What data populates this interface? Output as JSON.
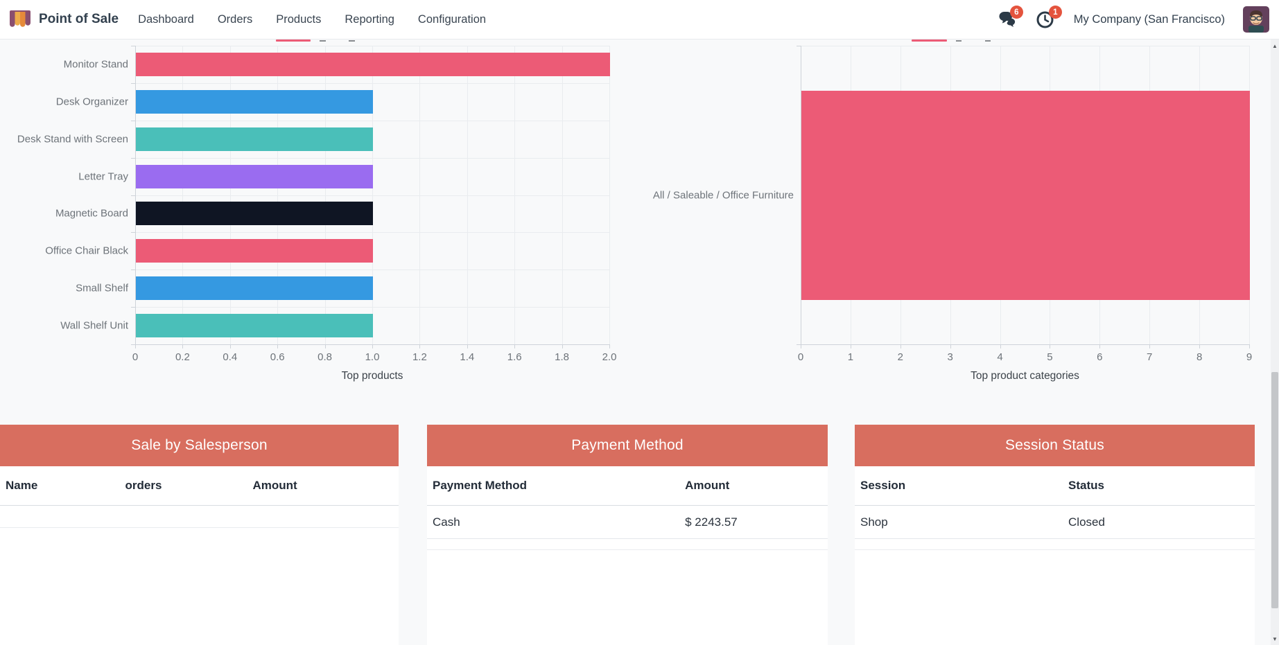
{
  "nav": {
    "app_name": "Point of Sale",
    "menu_items": [
      "Dashboard",
      "Orders",
      "Products",
      "Reporting",
      "Configuration"
    ],
    "messages_badge": "6",
    "activities_badge": "1",
    "company": "My Company (San Francisco)",
    "icons": [
      "pos-app-awning-icon",
      "chat-bubbles-icon",
      "clock-activities-icon",
      "user-avatar"
    ]
  },
  "chart_data": [
    {
      "type": "bar",
      "orientation": "horizontal",
      "title": "Top products",
      "categories": [
        "Monitor Stand",
        "Desk Organizer",
        "Desk Stand with Screen",
        "Letter Tray",
        "Magnetic Board",
        "Office Chair Black",
        "Small Shelf",
        "Wall Shelf Unit"
      ],
      "values": [
        2.0,
        1.0,
        1.0,
        1.0,
        1.0,
        1.0,
        1.0,
        1.0
      ],
      "bar_colors": [
        "#ec5b76",
        "#3599e1",
        "#4abfb9",
        "#9a6cf0",
        "#0f1523",
        "#ec5b76",
        "#3599e1",
        "#4abfb9"
      ],
      "xticks": [
        "0",
        "0.2",
        "0.4",
        "0.6",
        "0.8",
        "1.0",
        "1.2",
        "1.4",
        "1.6",
        "1.8",
        "2.0"
      ],
      "xlim": [
        0,
        2.0
      ],
      "grid": true,
      "legend": "cut off by scroll (partially visible)"
    },
    {
      "type": "bar",
      "orientation": "horizontal",
      "title": "Top product categories",
      "categories": [
        "All / Saleable / Office Furniture"
      ],
      "values": [
        9
      ],
      "bar_colors": [
        "#ec5b76"
      ],
      "xticks": [
        "0",
        "1",
        "2",
        "3",
        "4",
        "5",
        "6",
        "7",
        "8",
        "9"
      ],
      "xlim": [
        0,
        9
      ],
      "grid": true,
      "legend": "cut off by scroll (partially visible)"
    }
  ],
  "tables": [
    {
      "title": "Sale by Salesperson",
      "columns": [
        "Name",
        "orders",
        "Amount"
      ],
      "rows": []
    },
    {
      "title": "Payment Method",
      "columns": [
        "Payment Method",
        "Amount"
      ],
      "rows": [
        [
          "Cash",
          "$ 2243.57"
        ]
      ]
    },
    {
      "title": "Session Status",
      "columns": [
        "Session",
        "Status"
      ],
      "rows": [
        [
          "Shop",
          "Closed"
        ]
      ]
    }
  ],
  "colors": {
    "accent_pink": "#ec5b76",
    "accent_blue": "#3599e1",
    "accent_teal": "#4abfb9",
    "accent_purple": "#9a6cf0",
    "accent_dark": "#0f1523",
    "card_header": "#d86e5f",
    "badge_red": "#e4533d",
    "page_bg": "#f8f9fa"
  }
}
